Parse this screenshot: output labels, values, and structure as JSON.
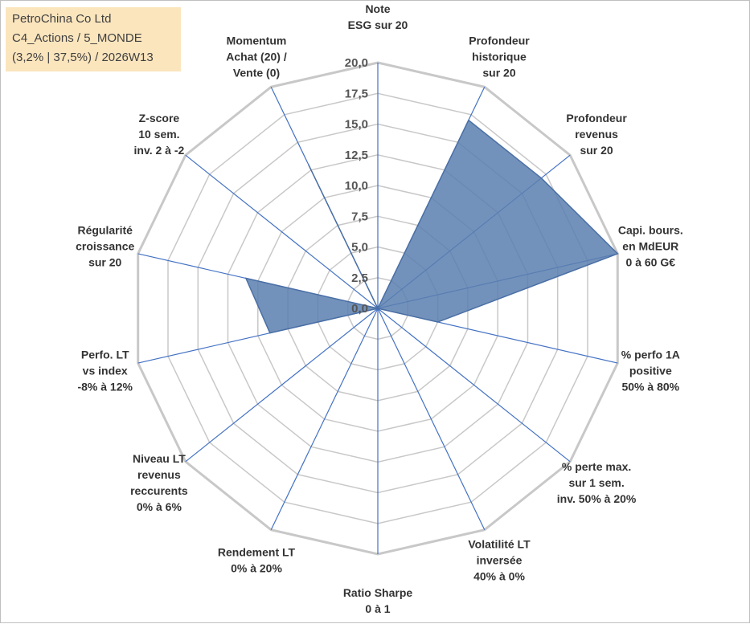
{
  "info": {
    "company": "PetroChina Co Ltd",
    "portfolio": "C4_Actions / 5_MONDE",
    "stats": "(3,2% | 37,5%) / 2026W13"
  },
  "chart_data": {
    "type": "radar",
    "rmin": 0,
    "rmax": 20,
    "ticks": [
      "0,0",
      "2,5",
      "5,0",
      "7,5",
      "10,0",
      "12,5",
      "15,0",
      "17,5",
      "20,0"
    ],
    "grid_levels": 8,
    "colors": {
      "grid": "#c8c8c8",
      "spokes": "#4472c4",
      "fill": "#5b7faf",
      "stroke": "#4a6fa5"
    },
    "axes": [
      {
        "lines": [
          "Note",
          "ESG sur 20"
        ]
      },
      {
        "lines": [
          "Profondeur",
          "historique",
          "sur 20"
        ]
      },
      {
        "lines": [
          "Profondeur",
          "revenus",
          "sur 20"
        ]
      },
      {
        "lines": [
          "Capi. bours.",
          "en MdEUR",
          "0 à 60 G€"
        ]
      },
      {
        "lines": [
          "% perfo 1A",
          "positive",
          "50% à 80%"
        ]
      },
      {
        "lines": [
          "% perte max.",
          "sur 1 sem.",
          "inv. 50% à 20%"
        ]
      },
      {
        "lines": [
          "Volatilité LT",
          "inversée",
          "40% à 0%"
        ]
      },
      {
        "lines": [
          "Ratio Sharpe",
          "0 à 1"
        ]
      },
      {
        "lines": [
          "Rendement LT",
          "0% à 20%"
        ]
      },
      {
        "lines": [
          "Niveau LT",
          "revenus",
          "reccurents",
          "0% à 6%"
        ]
      },
      {
        "lines": [
          "Perfo. LT",
          "vs index",
          "-8% à 12%"
        ]
      },
      {
        "lines": [
          "Régularité",
          "croissance",
          "sur 20"
        ]
      },
      {
        "lines": [
          "Z-score",
          "10 sem.",
          "inv. 2 à -2"
        ]
      },
      {
        "lines": [
          "Momentum",
          "Achat (20) /",
          "Vente (0)"
        ]
      }
    ],
    "series": [
      {
        "values": [
          0,
          17,
          17,
          20,
          5,
          0,
          0,
          0,
          0,
          0,
          9,
          11,
          0,
          13
        ]
      }
    ]
  }
}
